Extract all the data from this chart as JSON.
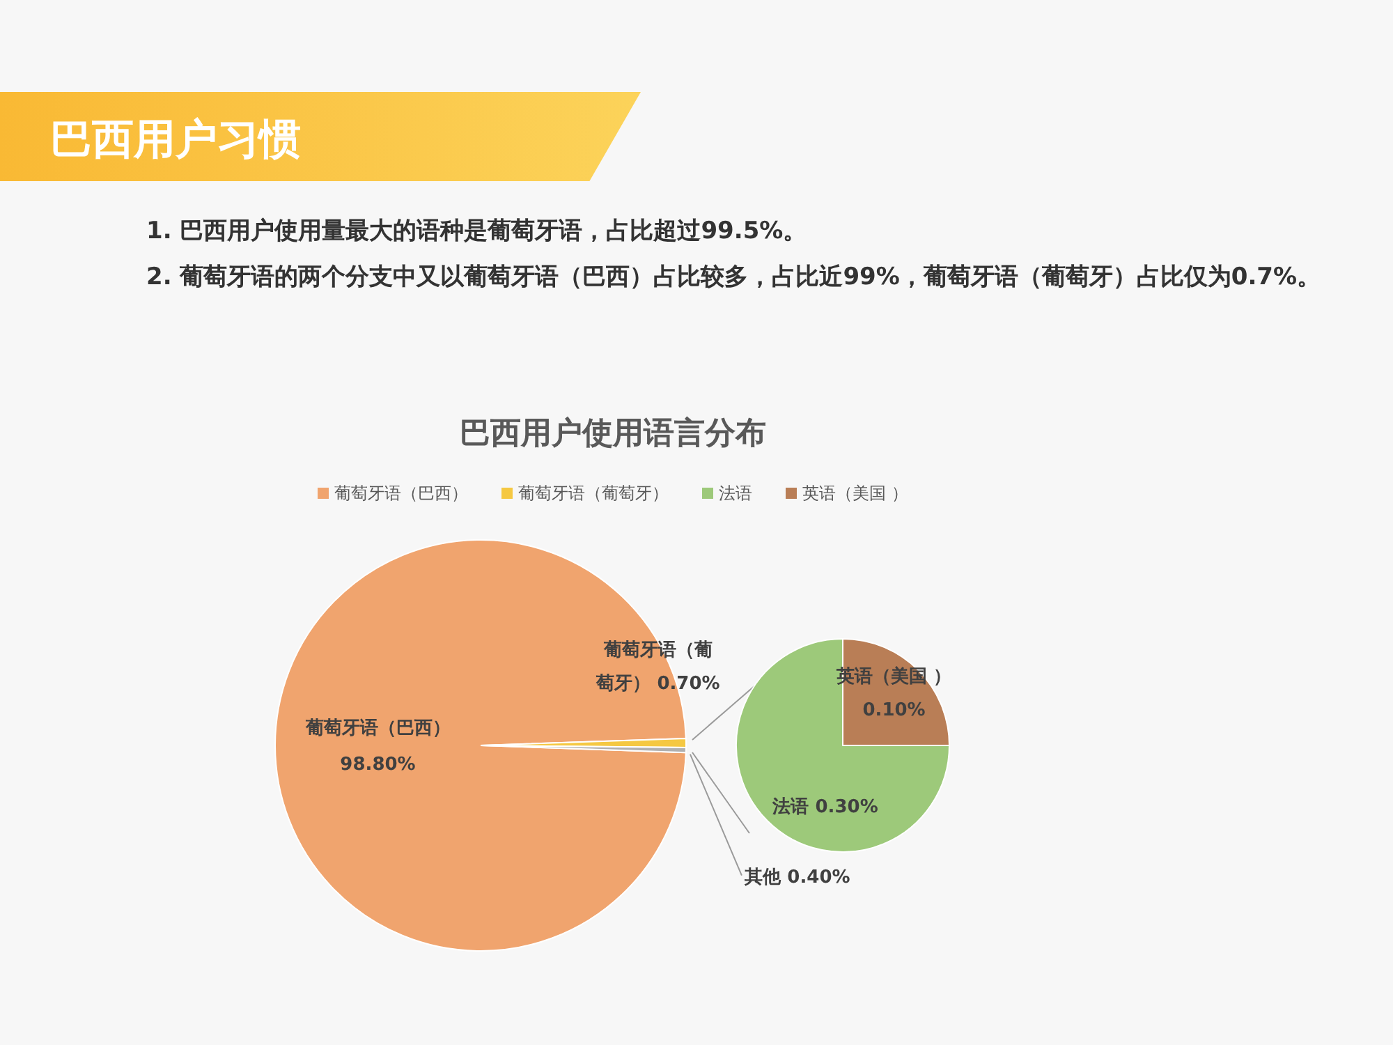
{
  "chart_data": [
    {
      "type": "pie",
      "title": "巴西用户使用语言分布",
      "annotations": [
        "巴西用户习惯",
        "1. 巴西用户使用量最大的语种是葡萄牙语，占比超过99.5%。",
        "2. 葡萄牙语的两个分支中又以葡萄牙语（巴西）占比较多，占比近99%，葡萄牙语（葡萄牙）占比仅为0.7%。"
      ],
      "categories": [
        "葡萄牙语（巴西）",
        "葡萄牙语（葡萄牙）",
        "其他"
      ],
      "values": [
        98.8,
        0.7,
        0.4
      ],
      "value_labels": [
        "98.80%",
        "0.70%",
        "0.40%"
      ],
      "colors": [
        "#f0a46e",
        "#f5c842",
        "#b0b0b0"
      ],
      "legend": "top"
    },
    {
      "type": "pie",
      "categories": [
        "法语",
        "英语（美国 ）"
      ],
      "values": [
        0.3,
        0.1
      ],
      "value_labels": [
        "0.30%",
        "0.10%"
      ],
      "colors": [
        "#9dc97a",
        "#b97e56"
      ],
      "legend": "top"
    }
  ]
}
